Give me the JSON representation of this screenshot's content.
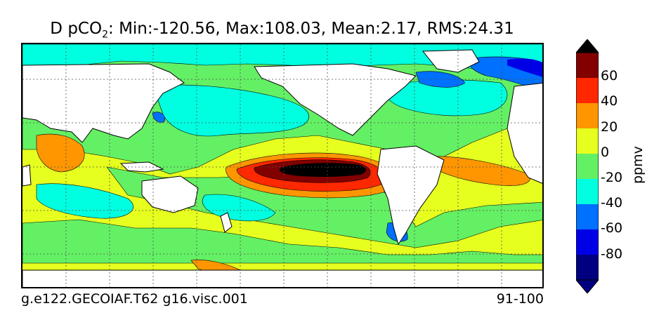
{
  "title": {
    "prefix": "D pCO",
    "subscript": "2",
    "suffix": ": Min:-120.56, Max:108.03, Mean:2.17, RMS:24.31"
  },
  "footer": {
    "case_name": "g.e122.GECOIAF.T62 g16.visc.001",
    "years": "91-100"
  },
  "colorbar": {
    "units": "ppmv",
    "tick_labels": [
      "60",
      "40",
      "20",
      "0",
      "-20",
      "-40",
      "-60",
      "-80"
    ],
    "levels": [
      -100,
      -80,
      -60,
      -40,
      -20,
      0,
      20,
      40,
      60,
      80,
      100
    ],
    "colors": [
      "#000080",
      "#0000e6",
      "#0070ff",
      "#00ffe0",
      "#64f064",
      "#e6ff1e",
      "#ff9600",
      "#ff2800",
      "#820000",
      "#000000"
    ]
  },
  "map_colors": {
    "land": "#ffffff",
    "background": "#e6ff1e",
    "coast": "#000000",
    "grid": "#505050"
  }
}
